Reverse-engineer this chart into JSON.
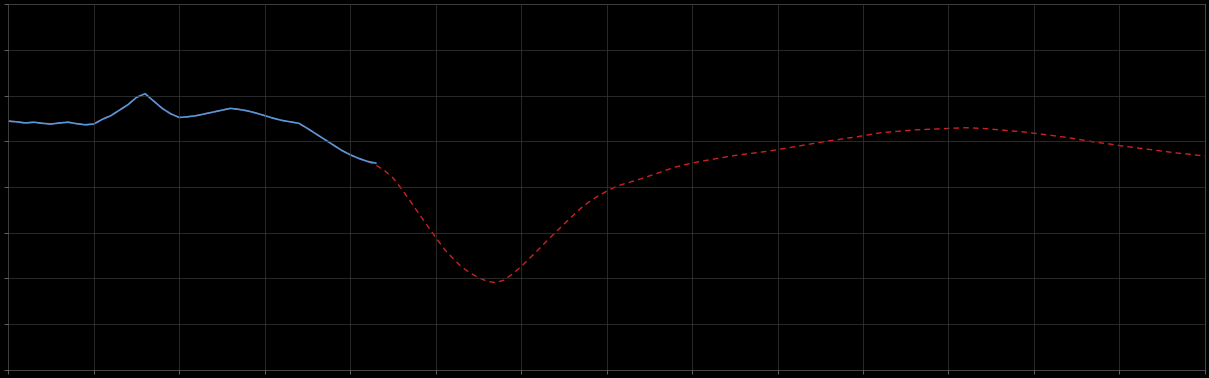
{
  "background_color": "#000000",
  "plot_bg_color": "#000000",
  "grid_color": "#3a3a3a",
  "line1_color": "#5599dd",
  "line2_color": "#cc2222",
  "figsize": [
    12.09,
    3.78
  ],
  "dpi": 100,
  "xlim": [
    0,
    140
  ],
  "ylim": [
    0,
    10
  ],
  "n_xticks": 15,
  "n_yticks": 9,
  "line1_x": [
    0,
    1,
    2,
    3,
    4,
    5,
    6,
    7,
    8,
    9,
    10,
    11,
    12,
    13,
    14,
    15,
    16,
    17,
    18,
    19,
    20,
    21,
    22,
    23,
    24,
    25,
    26,
    27,
    28,
    29,
    30,
    31,
    32,
    33,
    34,
    35,
    36,
    37,
    38,
    39,
    40,
    41,
    42,
    43
  ],
  "line1_y": [
    6.8,
    6.78,
    6.75,
    6.77,
    6.74,
    6.72,
    6.75,
    6.77,
    6.73,
    6.7,
    6.72,
    6.85,
    6.95,
    7.1,
    7.25,
    7.45,
    7.55,
    7.35,
    7.15,
    7.0,
    6.9,
    6.92,
    6.95,
    7.0,
    7.05,
    7.1,
    7.15,
    7.12,
    7.08,
    7.02,
    6.95,
    6.88,
    6.82,
    6.78,
    6.74,
    6.6,
    6.45,
    6.3,
    6.15,
    6.0,
    5.88,
    5.78,
    5.7,
    5.65
  ],
  "line2_x": [
    0,
    1,
    2,
    3,
    4,
    5,
    6,
    7,
    8,
    9,
    10,
    11,
    12,
    13,
    14,
    15,
    16,
    17,
    18,
    19,
    20,
    21,
    22,
    23,
    24,
    25,
    26,
    27,
    28,
    29,
    30,
    31,
    32,
    33,
    34,
    35,
    36,
    37,
    38,
    39,
    40,
    41,
    42,
    43,
    44,
    45,
    46,
    47,
    48,
    49,
    50,
    51,
    52,
    53,
    54,
    55,
    56,
    57,
    58,
    59,
    60,
    61,
    62,
    63,
    64,
    65,
    66,
    67,
    68,
    69,
    70,
    71,
    72,
    73,
    74,
    75,
    76,
    77,
    78,
    79,
    80,
    81,
    82,
    83,
    84,
    85,
    86,
    87,
    88,
    89,
    90,
    91,
    92,
    93,
    94,
    95,
    96,
    97,
    98,
    99,
    100,
    101,
    102,
    103,
    104,
    105,
    106,
    107,
    108,
    109,
    110,
    111,
    112,
    113,
    114,
    115,
    116,
    117,
    118,
    119,
    120,
    121,
    122,
    123,
    124,
    125,
    126,
    127,
    128,
    129,
    130,
    131,
    132,
    133,
    134,
    135,
    136,
    137,
    138,
    139,
    140
  ],
  "line2_y": [
    6.8,
    6.78,
    6.75,
    6.77,
    6.74,
    6.72,
    6.75,
    6.77,
    6.73,
    6.7,
    6.72,
    6.85,
    6.95,
    7.1,
    7.25,
    7.45,
    7.55,
    7.35,
    7.15,
    7.0,
    6.9,
    6.92,
    6.95,
    7.0,
    7.05,
    7.1,
    7.15,
    7.12,
    7.08,
    7.02,
    6.95,
    6.88,
    6.82,
    6.78,
    6.74,
    6.6,
    6.45,
    6.3,
    6.15,
    6.0,
    5.88,
    5.78,
    5.7,
    5.6,
    5.45,
    5.25,
    4.95,
    4.62,
    4.28,
    3.95,
    3.62,
    3.3,
    3.05,
    2.82,
    2.65,
    2.52,
    2.42,
    2.38,
    2.45,
    2.62,
    2.82,
    3.05,
    3.28,
    3.52,
    3.75,
    3.98,
    4.2,
    4.42,
    4.6,
    4.75,
    4.88,
    5.0,
    5.08,
    5.15,
    5.22,
    5.3,
    5.38,
    5.46,
    5.54,
    5.6,
    5.65,
    5.7,
    5.74,
    5.78,
    5.82,
    5.86,
    5.89,
    5.92,
    5.95,
    5.98,
    6.02,
    6.06,
    6.1,
    6.14,
    6.18,
    6.22,
    6.26,
    6.29,
    6.33,
    6.36,
    6.4,
    6.44,
    6.48,
    6.5,
    6.52,
    6.54,
    6.56,
    6.57,
    6.58,
    6.59,
    6.6,
    6.61,
    6.62,
    6.61,
    6.6,
    6.58,
    6.56,
    6.54,
    6.52,
    6.5,
    6.47,
    6.44,
    6.41,
    6.38,
    6.35,
    6.31,
    6.27,
    6.23,
    6.2,
    6.17,
    6.13,
    6.1,
    6.07,
    6.04,
    6.01,
    5.98,
    5.95,
    5.92,
    5.9,
    5.87,
    5.85
  ]
}
